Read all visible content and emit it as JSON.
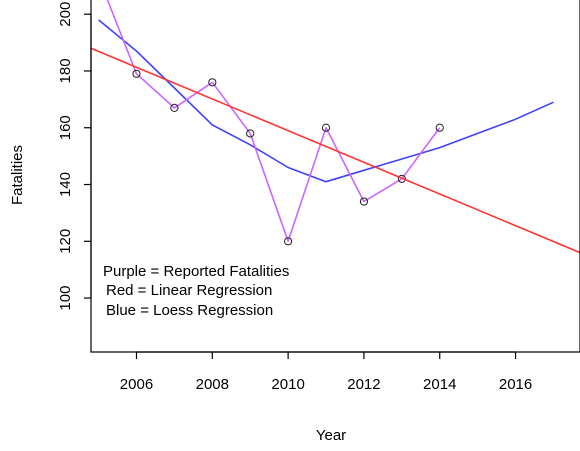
{
  "chart_data": {
    "type": "line",
    "title": "",
    "xlabel": "Year",
    "ylabel": "Fatalities",
    "xlim": [
      2004.8,
      2017.7
    ],
    "ylim": [
      81,
      205
    ],
    "x_ticks": [
      2006,
      2008,
      2010,
      2012,
      2014,
      2016
    ],
    "y_ticks": [
      100,
      120,
      140,
      160,
      180,
      200
    ],
    "x_tick_labels": [
      "2006",
      "2008",
      "2010",
      "2012",
      "2014",
      "2016"
    ],
    "y_tick_labels": [
      "100",
      "120",
      "140",
      "160",
      "180",
      "200"
    ],
    "grid": false,
    "legend_text": [
      "Purple = Reported Fatalities",
      "Red = Linear Regression",
      "Blue = Loess Regression"
    ],
    "series": [
      {
        "name": "Reported Fatalities",
        "color": "#cc66ff",
        "style": "line+points",
        "x": [
          2005,
          2006,
          2007,
          2008,
          2009,
          2010,
          2011,
          2012,
          2013,
          2014
        ],
        "y": [
          213,
          179,
          167,
          176,
          158,
          120,
          160,
          134,
          142,
          160
        ]
      },
      {
        "name": "Linear Regression",
        "color": "#ff3333",
        "style": "line",
        "x": [
          2004.8,
          2017.7
        ],
        "y": [
          188,
          116
        ]
      },
      {
        "name": "Loess Regression",
        "color": "#4040ff",
        "style": "line",
        "x": [
          2005,
          2006,
          2007,
          2008,
          2009,
          2010,
          2011,
          2012,
          2013,
          2014,
          2015,
          2016,
          2017
        ],
        "y": [
          198,
          187,
          174,
          161,
          154,
          146,
          141,
          145,
          149,
          153,
          158,
          163,
          169
        ]
      }
    ]
  }
}
